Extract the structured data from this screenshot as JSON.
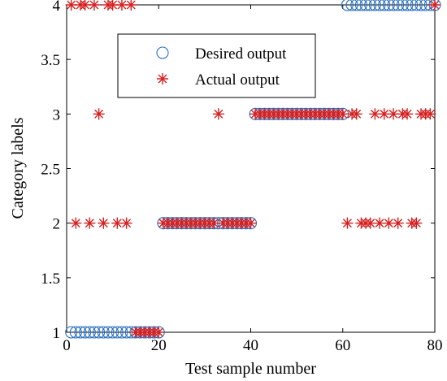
{
  "chart_data": {
    "type": "scatter",
    "xlabel": "Test sample number",
    "ylabel": "Category labels",
    "xlim": [
      0,
      80
    ],
    "ylim": [
      1,
      4
    ],
    "xticks": [
      0,
      20,
      40,
      60,
      80
    ],
    "yticks": [
      1,
      1.5,
      2,
      2.5,
      3,
      3.5,
      4
    ],
    "ytick_labels": [
      "1",
      "1.5",
      "2",
      "2.5",
      "3",
      "3.5",
      "4"
    ],
    "grid": false,
    "legend_position": "top-left",
    "series": [
      {
        "name": "Desired output",
        "marker": "circle",
        "color": "#2a6fc0",
        "x": [
          1,
          2,
          3,
          4,
          5,
          6,
          7,
          8,
          9,
          10,
          11,
          12,
          13,
          14,
          15,
          16,
          17,
          18,
          19,
          20,
          21,
          22,
          23,
          24,
          25,
          26,
          27,
          28,
          29,
          30,
          31,
          32,
          33,
          34,
          35,
          36,
          37,
          38,
          39,
          40,
          41,
          42,
          43,
          44,
          45,
          46,
          47,
          48,
          49,
          50,
          51,
          52,
          53,
          54,
          55,
          56,
          57,
          58,
          59,
          60,
          61,
          62,
          63,
          64,
          65,
          66,
          67,
          68,
          69,
          70,
          71,
          72,
          73,
          74,
          75,
          76,
          77,
          78,
          79,
          80
        ],
        "y": [
          1,
          1,
          1,
          1,
          1,
          1,
          1,
          1,
          1,
          1,
          1,
          1,
          1,
          1,
          1,
          1,
          1,
          1,
          1,
          1,
          2,
          2,
          2,
          2,
          2,
          2,
          2,
          2,
          2,
          2,
          2,
          2,
          2,
          2,
          2,
          2,
          2,
          2,
          2,
          2,
          3,
          3,
          3,
          3,
          3,
          3,
          3,
          3,
          3,
          3,
          3,
          3,
          3,
          3,
          3,
          3,
          3,
          3,
          3,
          3,
          4,
          4,
          4,
          4,
          4,
          4,
          4,
          4,
          4,
          4,
          4,
          4,
          4,
          4,
          4,
          4,
          4,
          4,
          4,
          4
        ]
      },
      {
        "name": "Actual output",
        "marker": "asterisk",
        "color": "#d62020",
        "x": [
          1,
          2,
          3,
          4,
          5,
          6,
          7,
          8,
          9,
          10,
          11,
          12,
          13,
          14,
          15,
          16,
          17,
          18,
          19,
          20,
          21,
          22,
          23,
          24,
          25,
          26,
          27,
          28,
          29,
          30,
          31,
          32,
          33,
          34,
          35,
          36,
          37,
          38,
          39,
          40,
          41,
          42,
          43,
          44,
          45,
          46,
          47,
          48,
          49,
          50,
          51,
          52,
          53,
          54,
          55,
          56,
          57,
          58,
          59,
          60,
          61,
          62,
          63,
          64,
          65,
          66,
          67,
          68,
          69,
          70,
          71,
          72,
          73,
          74,
          75,
          76,
          77,
          78,
          79,
          80
        ],
        "y": [
          4,
          2,
          4,
          4,
          2,
          4,
          3,
          2,
          4,
          4,
          2,
          4,
          2,
          4,
          1,
          1,
          1,
          1,
          1,
          1,
          2,
          2,
          2,
          2,
          2,
          2,
          2,
          2,
          2,
          2,
          2,
          2,
          3,
          2,
          2,
          2,
          2,
          2,
          2,
          2,
          3,
          3,
          3,
          3,
          3,
          3,
          3,
          3,
          3,
          3,
          3,
          3,
          3,
          3,
          3,
          3,
          3,
          3,
          3,
          3,
          2,
          3,
          3,
          2,
          2,
          2,
          3,
          2,
          3,
          2,
          3,
          2,
          3,
          3,
          2,
          2,
          3,
          3,
          3,
          4
        ]
      }
    ]
  }
}
